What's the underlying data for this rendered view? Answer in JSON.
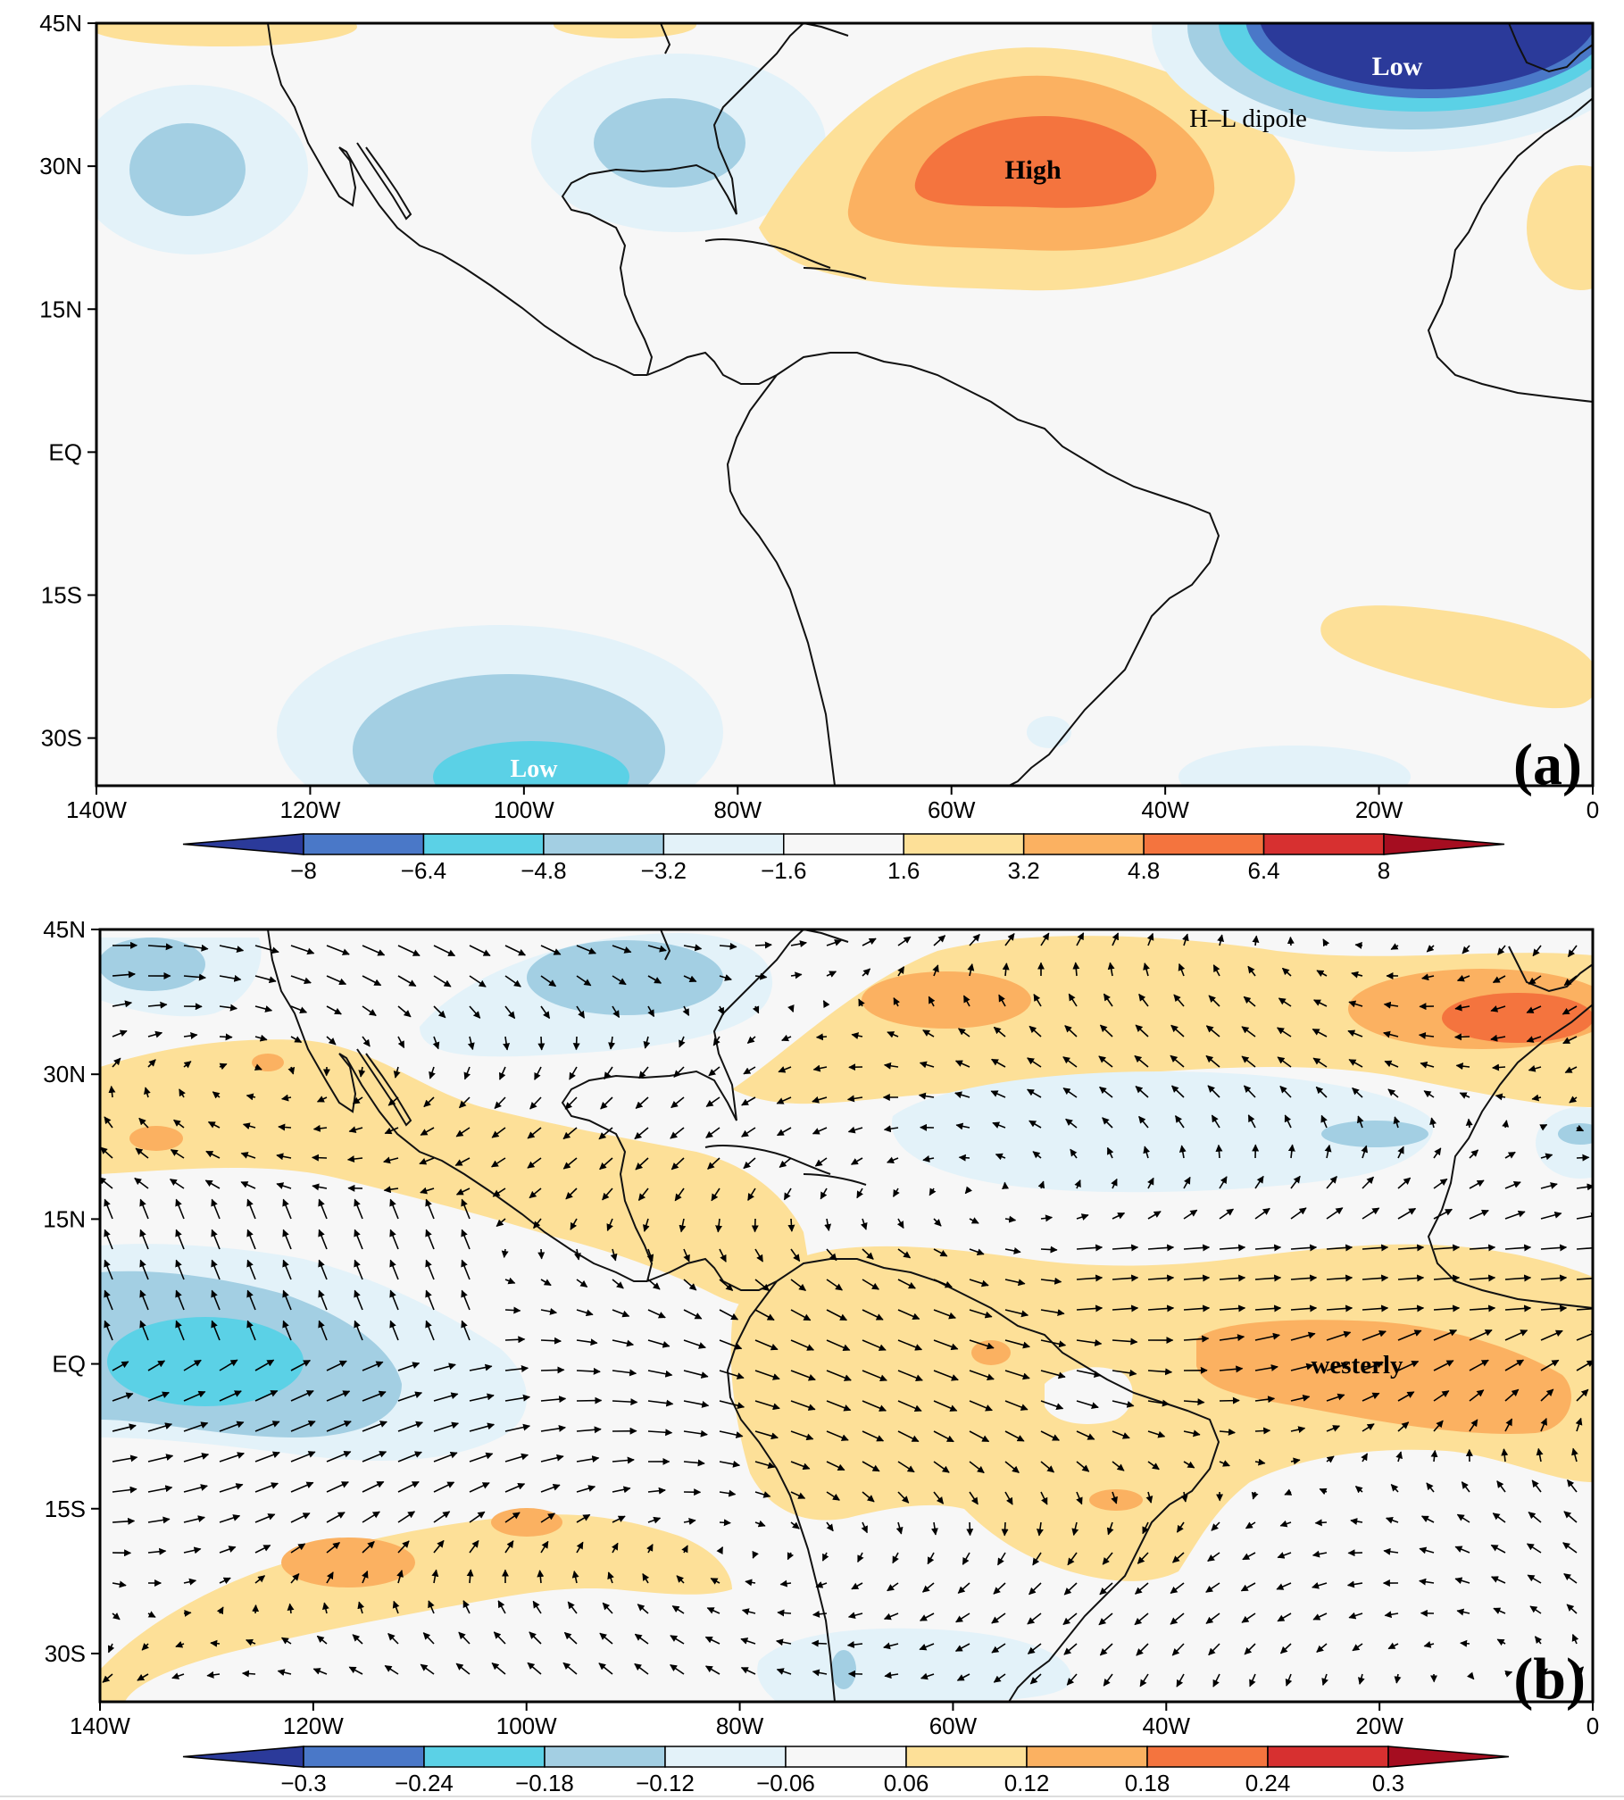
{
  "panel_a": {
    "letter": "(a)",
    "annotations": {
      "low_north": "Low",
      "dipole": "H–L dipole",
      "high": "High",
      "low_south": "Low"
    },
    "colorbar": {
      "ticks": [
        "−8",
        "−6.4",
        "−4.8",
        "−3.2",
        "−1.6",
        "1.6",
        "3.2",
        "4.8",
        "6.4",
        "8"
      ],
      "colors": [
        "#2b3a9a",
        "#4a78c8",
        "#5bd1e6",
        "#a3cfe3",
        "#e3f2f9",
        "#f7f7f7",
        "#fde098",
        "#fbb161",
        "#f4743e",
        "#d73030",
        "#a50d20"
      ]
    }
  },
  "panel_b": {
    "letter": "(b)",
    "annotations": {
      "westerly": "westerly"
    },
    "colorbar": {
      "ticks": [
        "−0.3",
        "−0.24",
        "−0.18",
        "−0.12",
        "−0.06",
        "0.06",
        "0.12",
        "0.18",
        "0.24",
        "0.3"
      ],
      "colors": [
        "#2b3a9a",
        "#4a78c8",
        "#5bd1e6",
        "#a3cfe3",
        "#e3f2f9",
        "#f7f7f7",
        "#fde098",
        "#fbb161",
        "#f4743e",
        "#d73030",
        "#a50d20"
      ]
    }
  },
  "axes": {
    "lat_labels": [
      "45N",
      "30N",
      "15N",
      "EQ",
      "15S",
      "30S"
    ],
    "lon_labels": [
      "140W",
      "120W",
      "100W",
      "80W",
      "60W",
      "40W",
      "20W",
      "0"
    ]
  },
  "palette": {
    "neg5": "#2b3a9a",
    "neg4": "#4a78c8",
    "neg3": "#5bd1e6",
    "neg2": "#a3cfe3",
    "neg1": "#e3f2f9",
    "zero": "#f7f7f7",
    "pos1": "#fde098",
    "pos2": "#fbb161",
    "pos3": "#f4743e",
    "pos4": "#d73030",
    "pos5": "#a50d20"
  }
}
